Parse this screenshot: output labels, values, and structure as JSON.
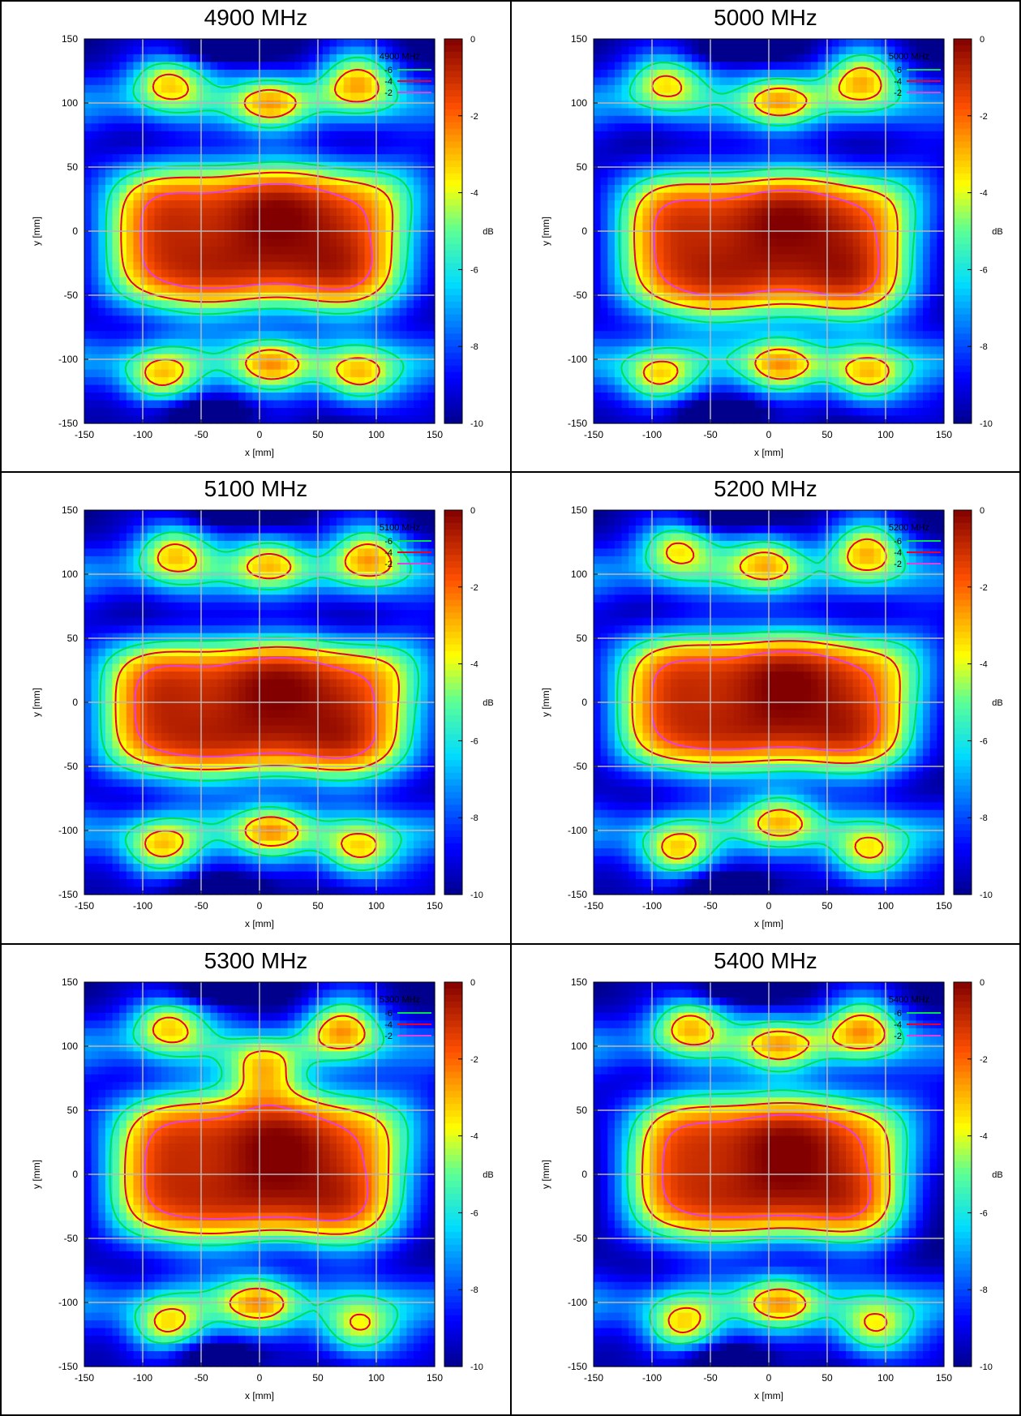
{
  "chart_data": [
    {
      "type": "heatmap",
      "title": "4900 MHz",
      "xlabel": "x [mm]",
      "ylabel": "y [mm]",
      "xlim": [
        -150,
        150
      ],
      "ylim": [
        -150,
        150
      ],
      "x_ticks": [
        -150,
        -100,
        -50,
        0,
        50,
        100,
        150
      ],
      "y_ticks": [
        -150,
        -100,
        -50,
        0,
        50,
        100,
        150
      ],
      "colorbar": {
        "label": "dB",
        "range": [
          -10,
          0
        ],
        "ticks": [
          0,
          -2,
          -4,
          -6,
          -8,
          -10
        ]
      },
      "legend": {
        "title": "4900 MHz",
        "position": "top-right",
        "entries": [
          {
            "label": "-6",
            "color": "#00e050"
          },
          {
            "label": "-4",
            "color": "#e8002a"
          },
          {
            "label": "-2",
            "color": "#e040e0"
          }
        ]
      },
      "grid": true,
      "params": {
        "core_y": -5,
        "core_hw": 132,
        "core_hh": 58,
        "top_lobes": [
          [
            -80,
            118
          ],
          [
            10,
            100
          ],
          [
            85,
            118
          ]
        ],
        "bot_lobes": [
          [
            -85,
            -115
          ],
          [
            10,
            -105
          ],
          [
            85,
            -115
          ]
        ],
        "top_dark": [
          -40,
          140
        ],
        "bot_dark": [
          -50,
          -140
        ]
      }
    },
    {
      "type": "heatmap",
      "title": "5000 MHz",
      "xlabel": "x [mm]",
      "ylabel": "y [mm]",
      "xlim": [
        -150,
        150
      ],
      "ylim": [
        -150,
        150
      ],
      "x_ticks": [
        -150,
        -100,
        -50,
        0,
        50,
        100,
        150
      ],
      "y_ticks": [
        -150,
        -100,
        -50,
        0,
        50,
        100,
        150
      ],
      "colorbar": {
        "label": "dB",
        "range": [
          -10,
          0
        ],
        "ticks": [
          0,
          -2,
          -4,
          -6,
          -8,
          -10
        ]
      },
      "legend": {
        "title": "5000 MHz",
        "position": "top-right",
        "entries": [
          {
            "label": "-6",
            "color": "#00e050"
          },
          {
            "label": "-4",
            "color": "#e8002a"
          },
          {
            "label": "-2",
            "color": "#e040e0"
          }
        ]
      },
      "grid": true,
      "params": {
        "core_y": -10,
        "core_hw": 128,
        "core_hh": 58,
        "top_lobes": [
          [
            -90,
            118
          ],
          [
            10,
            102
          ],
          [
            80,
            120
          ]
        ],
        "bot_lobes": [
          [
            -95,
            -115
          ],
          [
            10,
            -105
          ],
          [
            85,
            -115
          ]
        ],
        "top_dark": [
          -30,
          140
        ],
        "bot_dark": [
          -40,
          -140
        ]
      }
    },
    {
      "type": "heatmap",
      "title": "5100 MHz",
      "xlabel": "x [mm]",
      "ylabel": "y [mm]",
      "xlim": [
        -150,
        150
      ],
      "ylim": [
        -150,
        150
      ],
      "x_ticks": [
        -150,
        -100,
        -50,
        0,
        50,
        100,
        150
      ],
      "y_ticks": [
        -150,
        -100,
        -50,
        0,
        50,
        100,
        150
      ],
      "colorbar": {
        "label": "dB",
        "range": [
          -10,
          0
        ],
        "ticks": [
          0,
          -2,
          -4,
          -6,
          -8,
          -10
        ]
      },
      "legend": {
        "title": "5100 MHz",
        "position": "top-right",
        "entries": [
          {
            "label": "-6",
            "color": "#00e050"
          },
          {
            "label": "-4",
            "color": "#e8002a"
          },
          {
            "label": "-2",
            "color": "#e040e0"
          }
        ]
      },
      "grid": true,
      "params": {
        "core_y": -5,
        "core_hw": 138,
        "core_hh": 55,
        "top_lobes": [
          [
            -75,
            118
          ],
          [
            10,
            110
          ],
          [
            95,
            115
          ]
        ],
        "bot_lobes": [
          [
            -85,
            -115
          ],
          [
            10,
            -100
          ],
          [
            85,
            -118
          ]
        ],
        "top_dark": [
          -20,
          145
        ],
        "bot_dark": [
          -30,
          -145
        ]
      }
    },
    {
      "type": "heatmap",
      "title": "5200 MHz",
      "xlabel": "x [mm]",
      "ylabel": "y [mm]",
      "xlim": [
        -150,
        150
      ],
      "ylim": [
        -150,
        150
      ],
      "x_ticks": [
        -150,
        -100,
        -50,
        0,
        50,
        100,
        150
      ],
      "y_ticks": [
        -150,
        -100,
        -50,
        0,
        50,
        100,
        150
      ],
      "colorbar": {
        "label": "dB",
        "range": [
          -10,
          0
        ],
        "ticks": [
          0,
          -2,
          -4,
          -6,
          -8,
          -10
        ]
      },
      "legend": {
        "title": "5200 MHz",
        "position": "top-right",
        "entries": [
          {
            "label": "-6",
            "color": "#00e050"
          },
          {
            "label": "-4",
            "color": "#e8002a"
          },
          {
            "label": "-2",
            "color": "#e040e0"
          }
        ]
      },
      "grid": true,
      "params": {
        "core_y": 0,
        "core_hw": 130,
        "core_hh": 55,
        "top_lobes": [
          [
            -80,
            122
          ],
          [
            0,
            110
          ],
          [
            85,
            120
          ]
        ],
        "bot_lobes": [
          [
            -80,
            -118
          ],
          [
            10,
            -90
          ],
          [
            85,
            -120
          ]
        ],
        "top_dark": [
          -40,
          142
        ],
        "bot_dark": [
          -40,
          -142
        ]
      }
    },
    {
      "type": "heatmap",
      "title": "5300 MHz",
      "xlabel": "x [mm]",
      "ylabel": "y [mm]",
      "xlim": [
        -150,
        150
      ],
      "ylim": [
        -150,
        150
      ],
      "x_ticks": [
        -150,
        -100,
        -50,
        0,
        50,
        100,
        150
      ],
      "y_ticks": [
        -150,
        -100,
        -50,
        0,
        50,
        100,
        150
      ],
      "colorbar": {
        "label": "dB",
        "range": [
          -10,
          0
        ],
        "ticks": [
          0,
          -2,
          -4,
          -6,
          -8,
          -10
        ]
      },
      "legend": {
        "title": "5300 MHz",
        "position": "top-right",
        "entries": [
          {
            "label": "-6",
            "color": "#00e050"
          },
          {
            "label": "-4",
            "color": "#e8002a"
          },
          {
            "label": "-2",
            "color": "#e040e0"
          }
        ]
      },
      "grid": true,
      "params": {
        "core_y": 5,
        "core_hw": 128,
        "core_hh": 60,
        "top_lobes": [
          [
            -80,
            118
          ],
          [
            5,
            82
          ],
          [
            70,
            115
          ]
        ],
        "bot_lobes": [
          [
            -80,
            -120
          ],
          [
            0,
            -100
          ],
          [
            85,
            -122
          ]
        ],
        "top_dark": [
          -40,
          142
        ],
        "bot_dark": [
          -40,
          -140
        ]
      }
    },
    {
      "type": "heatmap",
      "title": "5400 MHz",
      "xlabel": "x [mm]",
      "ylabel": "y [mm]",
      "xlim": [
        -150,
        150
      ],
      "ylim": [
        -150,
        150
      ],
      "x_ticks": [
        -150,
        -100,
        -50,
        0,
        50,
        100,
        150
      ],
      "y_ticks": [
        -150,
        -100,
        -50,
        0,
        50,
        100,
        150
      ],
      "colorbar": {
        "label": "dB",
        "range": [
          -10,
          0
        ],
        "ticks": [
          0,
          -2,
          -4,
          -6,
          -8,
          -10
        ]
      },
      "legend": {
        "title": "5400 MHz",
        "position": "top-right",
        "entries": [
          {
            "label": "-6",
            "color": "#00e050"
          },
          {
            "label": "-4",
            "color": "#e8002a"
          },
          {
            "label": "-2",
            "color": "#e040e0"
          }
        ]
      },
      "grid": true,
      "params": {
        "core_y": 5,
        "core_hw": 120,
        "core_hh": 58,
        "top_lobes": [
          [
            -70,
            118
          ],
          [
            10,
            102
          ],
          [
            80,
            115
          ]
        ],
        "bot_lobes": [
          [
            -75,
            -120
          ],
          [
            10,
            -100
          ],
          [
            90,
            -122
          ]
        ],
        "top_dark": [
          -30,
          142
        ],
        "bot_dark": [
          -40,
          -142
        ]
      }
    }
  ]
}
